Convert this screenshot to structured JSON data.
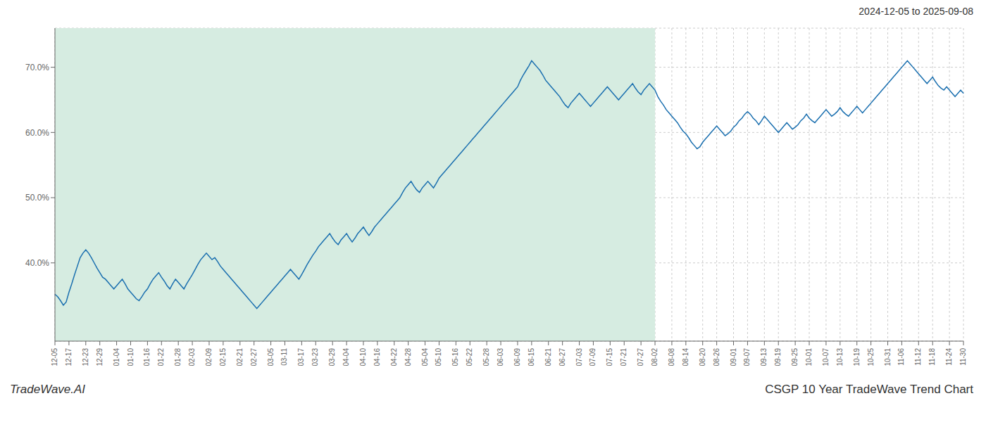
{
  "chart_data": {
    "type": "line",
    "title": "2024-12-05 to 2025-09-08",
    "annotations": [
      "TradeWave.AI",
      "CSGP 10 Year TradeWave Trend Chart"
    ],
    "color": "#1a6faf",
    "grid": true,
    "ylim": [
      28,
      76
    ],
    "yticks": [
      {
        "value": 40,
        "label": "40.0%"
      },
      {
        "value": 50,
        "label": "50.0%"
      },
      {
        "value": 60,
        "label": "60.0%"
      },
      {
        "value": 70,
        "label": "70.0%"
      }
    ],
    "shaded_span": {
      "x": [
        "12-05",
        "08-02"
      ],
      "color": "#d6ece1"
    },
    "categories": [
      "12-05",
      null,
      null,
      null,
      null,
      "12-17",
      null,
      null,
      null,
      null,
      null,
      "12-23",
      null,
      null,
      null,
      null,
      "12-29",
      null,
      null,
      null,
      null,
      null,
      "01-04",
      null,
      null,
      null,
      null,
      "01-10",
      null,
      null,
      null,
      null,
      null,
      "01-16",
      null,
      null,
      null,
      null,
      "01-22",
      null,
      null,
      null,
      null,
      null,
      "01-28",
      null,
      null,
      null,
      null,
      "02-03",
      null,
      null,
      null,
      null,
      null,
      "02-09",
      null,
      null,
      null,
      null,
      "02-15",
      null,
      null,
      null,
      null,
      null,
      "02-21",
      null,
      null,
      null,
      null,
      "02-27",
      null,
      null,
      null,
      null,
      null,
      "03-05",
      null,
      null,
      null,
      null,
      "03-11",
      null,
      null,
      null,
      null,
      null,
      "03-17",
      null,
      null,
      null,
      null,
      "03-23",
      null,
      null,
      null,
      null,
      null,
      "03-29",
      null,
      null,
      null,
      null,
      "04-04",
      null,
      null,
      null,
      null,
      null,
      "04-10",
      null,
      null,
      null,
      null,
      "04-16",
      null,
      null,
      null,
      null,
      null,
      "04-22",
      null,
      null,
      null,
      null,
      "04-28",
      null,
      null,
      null,
      null,
      null,
      "05-04",
      null,
      null,
      null,
      null,
      "05-10",
      null,
      null,
      null,
      null,
      null,
      "05-16",
      null,
      null,
      null,
      null,
      "05-22",
      null,
      null,
      null,
      null,
      null,
      "05-28",
      null,
      null,
      null,
      null,
      "06-03",
      null,
      null,
      null,
      null,
      null,
      "06-09",
      null,
      null,
      null,
      null,
      "06-15",
      null,
      null,
      null,
      null,
      null,
      "06-21",
      null,
      null,
      null,
      null,
      "06-27",
      null,
      null,
      null,
      null,
      null,
      "07-03",
      null,
      null,
      null,
      null,
      "07-09",
      null,
      null,
      null,
      null,
      null,
      "07-15",
      null,
      null,
      null,
      null,
      "07-21",
      null,
      null,
      null,
      null,
      null,
      "07-27",
      null,
      null,
      null,
      null,
      "08-02",
      null,
      null,
      null,
      null,
      null,
      "08-08",
      null,
      null,
      null,
      null,
      "08-14",
      null,
      null,
      null,
      null,
      null,
      "08-20",
      null,
      null,
      null,
      null,
      "08-26",
      null,
      null,
      null,
      null,
      null,
      "09-01",
      null,
      null,
      null,
      null,
      "09-07",
      null,
      null,
      null,
      null,
      null,
      "09-13",
      null,
      null,
      null,
      null,
      "09-19",
      null,
      null,
      null,
      null,
      null,
      "09-25",
      null,
      null,
      null,
      null,
      "10-01",
      null,
      null,
      null,
      null,
      null,
      "10-07",
      null,
      null,
      null,
      null,
      "10-13",
      null,
      null,
      null,
      null,
      null,
      "10-19",
      null,
      null,
      null,
      null,
      "10-25",
      null,
      null,
      null,
      null,
      null,
      "10-31",
      null,
      null,
      null,
      null,
      "11-06",
      null,
      null,
      null,
      null,
      null,
      "11-12",
      null,
      null,
      null,
      null,
      "11-18",
      null,
      null,
      null,
      null,
      null,
      "11-24",
      null,
      null,
      null,
      null,
      "11-30"
    ],
    "values": [
      35.2,
      34.8,
      34.2,
      33.5,
      34.0,
      35.5,
      36.8,
      38.2,
      39.5,
      40.8,
      41.5,
      42.0,
      41.5,
      40.8,
      40.0,
      39.2,
      38.5,
      37.8,
      37.5,
      37.0,
      36.5,
      36.0,
      36.5,
      37.0,
      37.5,
      36.8,
      36.0,
      35.5,
      35.0,
      34.5,
      34.2,
      34.8,
      35.5,
      36.0,
      36.8,
      37.5,
      38.0,
      38.5,
      37.8,
      37.2,
      36.5,
      36.0,
      36.8,
      37.5,
      37.0,
      36.5,
      36.0,
      36.8,
      37.5,
      38.2,
      39.0,
      39.8,
      40.5,
      41.0,
      41.5,
      41.0,
      40.5,
      40.8,
      40.2,
      39.5,
      39.0,
      38.5,
      38.0,
      37.5,
      37.0,
      36.5,
      36.0,
      35.5,
      35.0,
      34.5,
      34.0,
      33.5,
      33.0,
      33.5,
      34.0,
      34.5,
      35.0,
      35.5,
      36.0,
      36.5,
      37.0,
      37.5,
      38.0,
      38.5,
      39.0,
      38.5,
      38.0,
      37.5,
      38.2,
      39.0,
      39.8,
      40.5,
      41.2,
      41.8,
      42.5,
      43.0,
      43.5,
      44.0,
      44.5,
      43.8,
      43.2,
      42.8,
      43.5,
      44.0,
      44.5,
      43.8,
      43.2,
      43.8,
      44.5,
      45.0,
      45.5,
      44.8,
      44.2,
      44.8,
      45.5,
      46.0,
      46.5,
      47.0,
      47.5,
      48.0,
      48.5,
      49.0,
      49.5,
      50.0,
      50.8,
      51.5,
      52.0,
      52.5,
      51.8,
      51.2,
      50.8,
      51.5,
      52.0,
      52.5,
      52.0,
      51.5,
      52.2,
      53.0,
      53.5,
      54.0,
      54.5,
      55.0,
      55.5,
      56.0,
      56.5,
      57.0,
      57.5,
      58.0,
      58.5,
      59.0,
      59.5,
      60.0,
      60.5,
      61.0,
      61.5,
      62.0,
      62.5,
      63.0,
      63.5,
      64.0,
      64.5,
      65.0,
      65.5,
      66.0,
      66.5,
      67.0,
      68.0,
      68.8,
      69.5,
      70.2,
      71.0,
      70.5,
      70.0,
      69.5,
      68.8,
      68.0,
      67.5,
      67.0,
      66.5,
      66.0,
      65.5,
      64.8,
      64.2,
      63.8,
      64.5,
      65.0,
      65.5,
      66.0,
      65.5,
      65.0,
      64.5,
      64.0,
      64.5,
      65.0,
      65.5,
      66.0,
      66.5,
      67.0,
      66.5,
      66.0,
      65.5,
      65.0,
      65.5,
      66.0,
      66.5,
      67.0,
      67.5,
      66.8,
      66.2,
      65.8,
      66.5,
      67.0,
      67.5,
      67.0,
      66.5,
      65.5,
      64.8,
      64.2,
      63.5,
      63.0,
      62.5,
      62.0,
      61.5,
      60.8,
      60.2,
      59.8,
      59.2,
      58.5,
      58.0,
      57.5,
      57.8,
      58.5,
      59.0,
      59.5,
      60.0,
      60.5,
      61.0,
      60.5,
      60.0,
      59.5,
      59.8,
      60.2,
      60.8,
      61.2,
      61.8,
      62.2,
      62.8,
      63.2,
      62.8,
      62.2,
      61.8,
      61.2,
      61.8,
      62.5,
      62.0,
      61.5,
      61.0,
      60.5,
      60.0,
      60.5,
      61.0,
      61.5,
      61.0,
      60.5,
      60.8,
      61.2,
      61.8,
      62.2,
      62.8,
      62.2,
      61.8,
      61.5,
      62.0,
      62.5,
      63.0,
      63.5,
      63.0,
      62.5,
      62.8,
      63.2,
      63.8,
      63.2,
      62.8,
      62.5,
      63.0,
      63.5,
      64.0,
      63.5,
      63.0,
      63.5,
      64.0,
      64.5,
      65.0,
      65.5,
      66.0,
      66.5,
      67.0,
      67.5,
      68.0,
      68.5,
      69.0,
      69.5,
      70.0,
      70.5,
      71.0,
      70.5,
      70.0,
      69.5,
      69.0,
      68.5,
      68.0,
      67.5,
      68.0,
      68.5,
      67.8,
      67.2,
      66.8,
      66.5,
      67.0,
      66.5,
      66.0,
      65.5,
      66.0,
      66.5,
      66.0
    ]
  }
}
